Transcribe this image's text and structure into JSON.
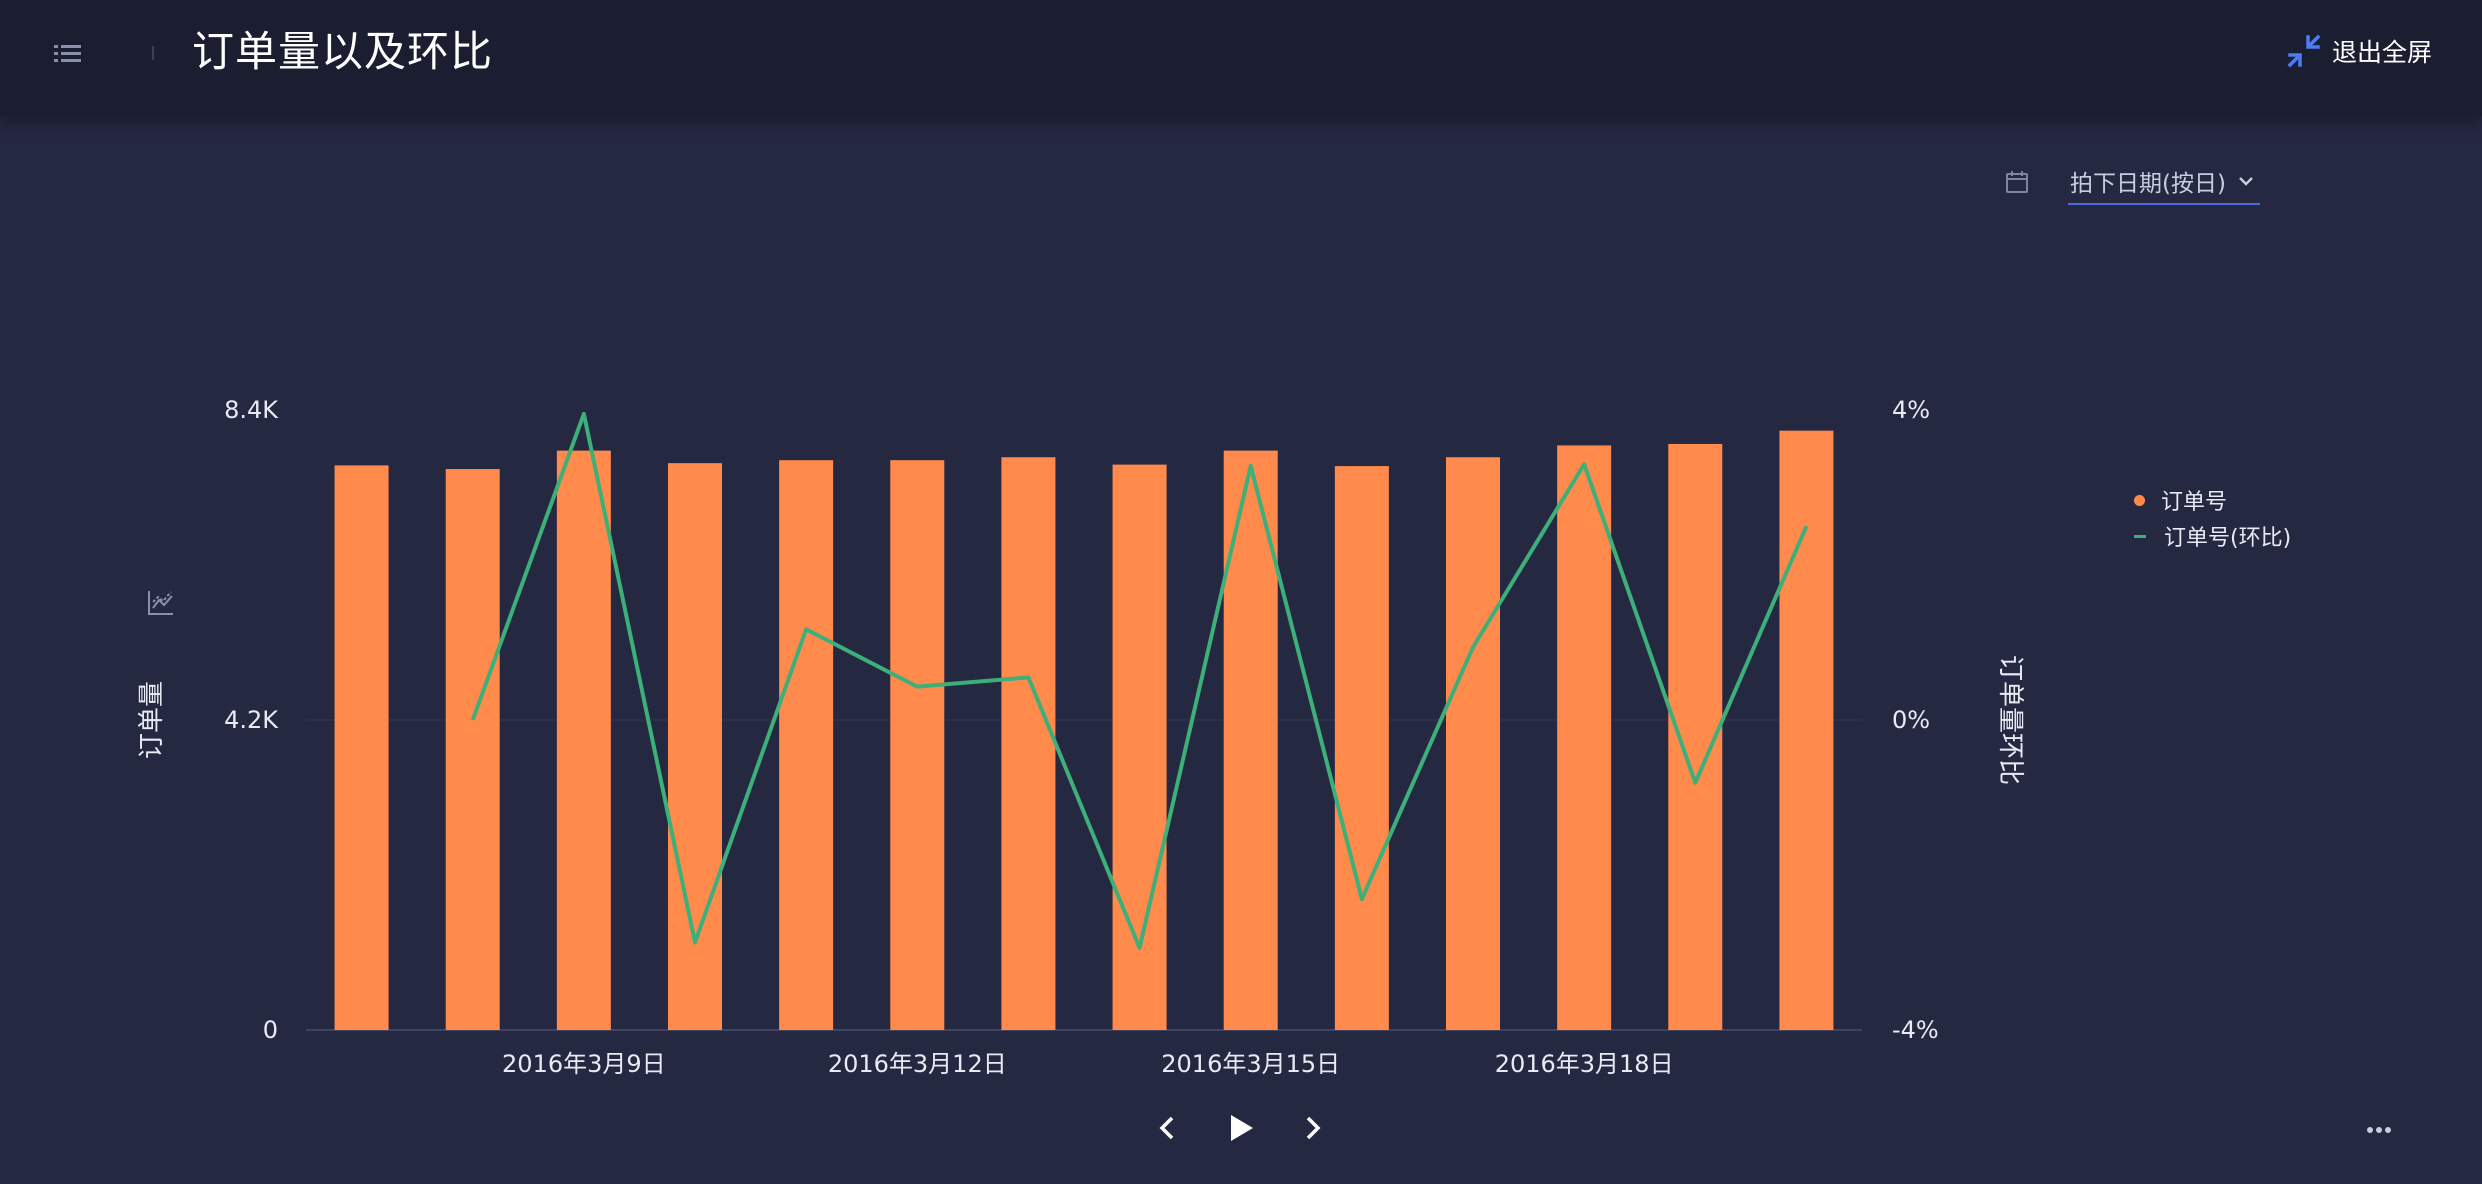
{
  "header": {
    "title": "订单量以及环比",
    "exit_fullscreen_label": "退出全屏"
  },
  "filter": {
    "date_label": "拍下日期(按日)"
  },
  "icons": {
    "menu": "list-icon",
    "exit_fullscreen": "compress-icon",
    "filter": "calendar-icon",
    "dropdown": "chevron-down-icon",
    "chart_type": "chart-type-icon",
    "prev": "chevron-left-icon",
    "play": "play-icon",
    "next": "chevron-right-icon",
    "more": "more-icon"
  },
  "colors": {
    "bar": "#ff8a4c",
    "line": "#3db07a",
    "accent": "#4b6bdc"
  },
  "chart_data": {
    "type": "bar",
    "left_axis": {
      "label": "订单量",
      "ticks": [
        "0",
        "4.2K",
        "8.4K"
      ],
      "range": [
        0,
        8400
      ]
    },
    "right_axis": {
      "label": "订单量环比",
      "ticks": [
        "-4%",
        "0%",
        "4%"
      ],
      "range": [
        -4,
        4
      ]
    },
    "x_tick_labels": [
      {
        "index": 2,
        "text": "2016年3月9日"
      },
      {
        "index": 5,
        "text": "2016年3月12日"
      },
      {
        "index": 8,
        "text": "2016年3月15日"
      },
      {
        "index": 11,
        "text": "2016年3月18日"
      }
    ],
    "series": [
      {
        "name": "订单号",
        "type": "bar",
        "axis": "left",
        "values": [
          7650,
          7600,
          7850,
          7680,
          7720,
          7720,
          7760,
          7660,
          7850,
          7640,
          7760,
          7920,
          7940,
          8120
        ]
      },
      {
        "name": "订单号(环比)",
        "type": "line",
        "axis": "right",
        "values": [
          null,
          0.0,
          3.95,
          -2.87,
          1.17,
          0.43,
          0.55,
          -2.94,
          3.28,
          -2.31,
          0.94,
          3.3,
          -0.81,
          2.5
        ]
      }
    ],
    "grid": true,
    "legend_position": "right"
  }
}
